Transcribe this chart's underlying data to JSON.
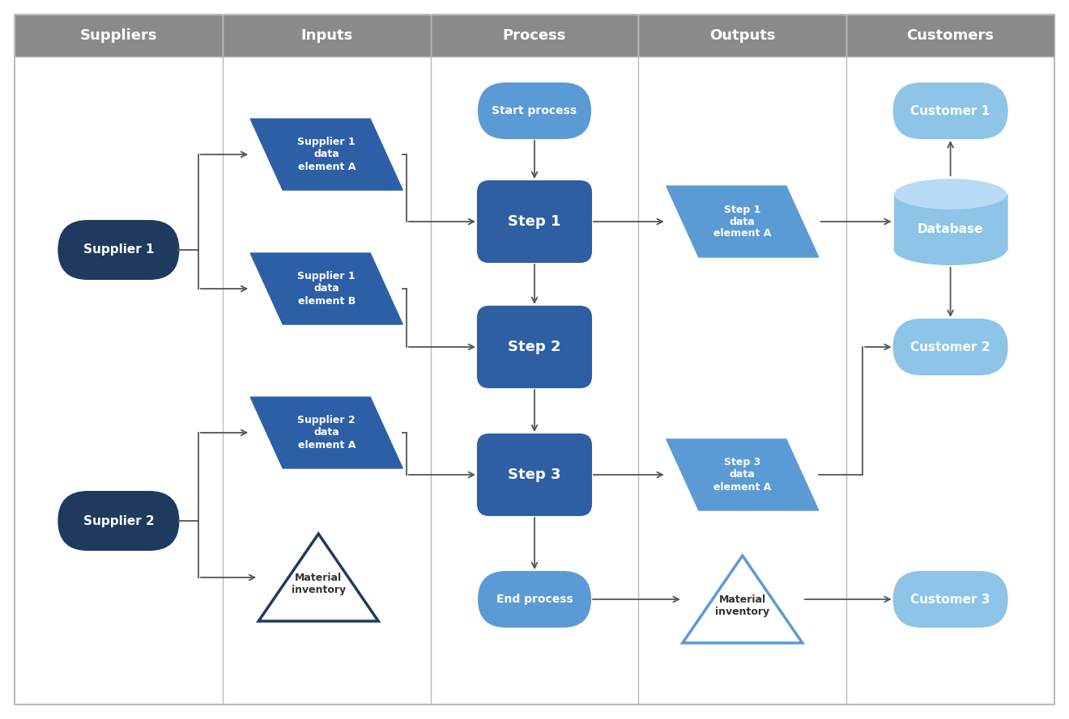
{
  "background_color": "#ffffff",
  "header_bg": "#8a8a8a",
  "header_text_color": "#ffffff",
  "columns": [
    "Suppliers",
    "Inputs",
    "Process",
    "Outputs",
    "Customers"
  ],
  "supplier1_text": "Supplier 1",
  "supplier1_color": "#1e3a5f",
  "supplier2_text": "Supplier 2",
  "supplier2_color": "#1e3a5f",
  "input_s1a_text": "Supplier 1\ndata\nelement A",
  "input_s1a_color": "#2d5fa6",
  "input_s1b_text": "Supplier 1\ndata\nelement B",
  "input_s1b_color": "#2d5fa6",
  "input_s2a_text": "Supplier 2\ndata\nelement A",
  "input_s2a_color": "#2d5fa6",
  "input_mat_text": "Material\ninventory",
  "input_mat_facecolor": "#ffffff",
  "input_mat_edgecolor": "#1e3a5f",
  "proc_start_text": "Start process",
  "proc_start_color": "#5b9bd5",
  "proc_step1_text": "Step 1",
  "proc_step1_color": "#2e5fa3",
  "proc_step2_text": "Step 2",
  "proc_step2_color": "#2e5fa3",
  "proc_step3_text": "Step 3",
  "proc_step3_color": "#2e5fa3",
  "proc_end_text": "End process",
  "proc_end_color": "#5b9bd5",
  "out_step1_text": "Step 1\ndata\nelement A",
  "out_step1_color": "#5b9bd5",
  "out_step3_text": "Step 3\ndata\nelement A",
  "out_step3_color": "#5b9bd5",
  "out_mat_text": "Material\ninventory",
  "out_mat_facecolor": "#ffffff",
  "out_mat_edgecolor": "#5b9bd5",
  "cust1_text": "Customer 1",
  "cust1_color": "#8ec4e8",
  "db_text": "Database",
  "db_color": "#8ec4e8",
  "cust2_text": "Customer 2",
  "cust2_color": "#8ec4e8",
  "cust3_text": "Customer 3",
  "cust3_color": "#8ec4e8",
  "arrow_color": "#555555",
  "grid_color": "#bbbbbb"
}
